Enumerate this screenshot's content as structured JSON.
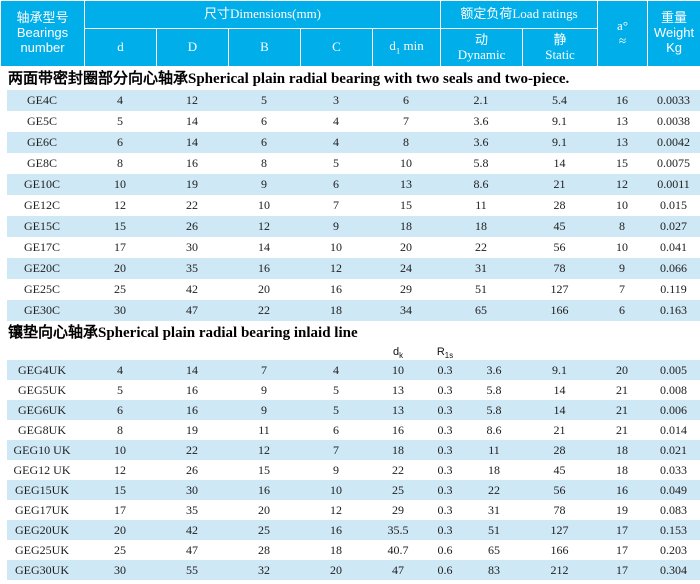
{
  "colors": {
    "header_bg": "#00aeea",
    "stripe": "#cfe8f5",
    "header_text": "#ffffff"
  },
  "header": {
    "bearing": "轴承型号\nBearings\nnumber",
    "dims_group": "尺寸Dimensions(mm)",
    "load_group": "额定负荷Load ratings",
    "col_d": "d",
    "col_D": "D",
    "col_B": "B",
    "col_C": "C",
    "col_d1min": {
      "base": "d",
      "sub": "1",
      "rest": " min"
    },
    "col_dynamic": "动\nDynamic",
    "col_static": "静\nStatic",
    "col_a": "a°\n≈",
    "col_weight": "重量\nWeight\nKg"
  },
  "sections": [
    {
      "title": "两面带密封圈部分向心轴承Spherical plain radial bearing with two seals and two-piece.",
      "columns": [
        "bearing",
        "d",
        "D",
        "B",
        "C",
        "d1min",
        "dynamic",
        "static",
        "a",
        "weight"
      ],
      "rows": [
        [
          "GE4C",
          "4",
          "12",
          "5",
          "3",
          "6",
          "2.1",
          "5.4",
          "16",
          "0.0033"
        ],
        [
          "GE5C",
          "5",
          "14",
          "6",
          "4",
          "7",
          "3.6",
          "9.1",
          "13",
          "0.0038"
        ],
        [
          "GE6C",
          "6",
          "14",
          "6",
          "4",
          "8",
          "3.6",
          "9.1",
          "13",
          "0.0042"
        ],
        [
          "GE8C",
          "8",
          "16",
          "8",
          "5",
          "10",
          "5.8",
          "14",
          "15",
          "0.0075"
        ],
        [
          "GE10C",
          "10",
          "19",
          "9",
          "6",
          "13",
          "8.6",
          "21",
          "12",
          "0.0011"
        ],
        [
          "GE12C",
          "12",
          "22",
          "10",
          "7",
          "15",
          "11",
          "28",
          "10",
          "0.015"
        ],
        [
          "GE15C",
          "15",
          "26",
          "12",
          "9",
          "18",
          "18",
          "45",
          "8",
          "0.027"
        ],
        [
          "GE17C",
          "17",
          "30",
          "14",
          "10",
          "20",
          "22",
          "56",
          "10",
          "0.041"
        ],
        [
          "GE20C",
          "20",
          "35",
          "16",
          "12",
          "24",
          "31",
          "78",
          "9",
          "0.066"
        ],
        [
          "GE25C",
          "25",
          "42",
          "20",
          "16",
          "29",
          "51",
          "127",
          "7",
          "0.119"
        ],
        [
          "GE30C",
          "30",
          "47",
          "22",
          "18",
          "34",
          "65",
          "166",
          "6",
          "0.163"
        ]
      ]
    },
    {
      "title": "镶垫向心轴承Spherical plain radial bearing inlaid line",
      "subcols": {
        "dk": {
          "base": "d",
          "sub": "k"
        },
        "r1s": {
          "base": "R",
          "sub": "1s"
        }
      },
      "columns": [
        "bearing",
        "d",
        "D",
        "B",
        "C",
        "dk",
        "r1s",
        "dynamic",
        "static",
        "a",
        "weight"
      ],
      "rows": [
        [
          "GEG4UK",
          "4",
          "14",
          "7",
          "4",
          "10",
          "0.3",
          "3.6",
          "9.1",
          "20",
          "0.005"
        ],
        [
          "GEG5UK",
          "5",
          "16",
          "9",
          "5",
          "13",
          "0.3",
          "5.8",
          "14",
          "21",
          "0.008"
        ],
        [
          "GEG6UK",
          "6",
          "16",
          "9",
          "5",
          "13",
          "0.3",
          "5.8",
          "14",
          "21",
          "0.006"
        ],
        [
          "GEG8UK",
          "8",
          "19",
          "11",
          "6",
          "16",
          "0.3",
          "8.6",
          "21",
          "21",
          "0.014"
        ],
        [
          "GEG10 UK",
          "10",
          "22",
          "12",
          "7",
          "18",
          "0.3",
          "11",
          "28",
          "18",
          "0.021"
        ],
        [
          "GEG12 UK",
          "12",
          "26",
          "15",
          "9",
          "22",
          "0.3",
          "18",
          "45",
          "18",
          "0.033"
        ],
        [
          "GEG15UK",
          "15",
          "30",
          "16",
          "10",
          "25",
          "0.3",
          "22",
          "56",
          "16",
          "0.049"
        ],
        [
          "GEG17UK",
          "17",
          "35",
          "20",
          "12",
          "29",
          "0.3",
          "31",
          "78",
          "19",
          "0.083"
        ],
        [
          "GEG20UK",
          "20",
          "42",
          "25",
          "16",
          "35.5",
          "0.3",
          "51",
          "127",
          "17",
          "0.153"
        ],
        [
          "GEG25UK",
          "25",
          "47",
          "28",
          "18",
          "40.7",
          "0.6",
          "65",
          "166",
          "17",
          "0.203"
        ],
        [
          "GEG30UK",
          "30",
          "55",
          "32",
          "20",
          "47",
          "0.6",
          "83",
          "212",
          "17",
          "0.304"
        ]
      ]
    }
  ]
}
